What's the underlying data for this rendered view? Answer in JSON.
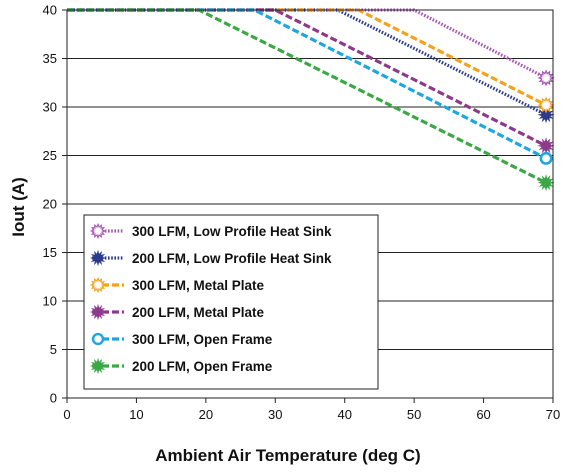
{
  "chart_data": {
    "type": "line",
    "title": "",
    "xlabel": "Ambient Air Temperature (deg C)",
    "ylabel": "Iout (A)",
    "xlim": [
      0,
      70
    ],
    "ylim": [
      0,
      40
    ],
    "xticks": [
      0,
      10,
      20,
      30,
      40,
      50,
      60,
      70
    ],
    "yticks": [
      0,
      5,
      10,
      15,
      20,
      25,
      30,
      35,
      40
    ],
    "grid": "horizontal",
    "legend_position": "bottom-left",
    "series": [
      {
        "name": "300 LFM, Low Profile Heat Sink",
        "color": "#a855b8",
        "style": "dotted",
        "marker": "open-starburst",
        "points": [
          [
            0,
            40
          ],
          [
            50,
            40
          ],
          [
            69,
            33
          ]
        ]
      },
      {
        "name": "200 LFM, Low Profile Heat Sink",
        "color": "#2b3a8c",
        "style": "dotted",
        "marker": "filled-starburst",
        "points": [
          [
            0,
            40
          ],
          [
            39,
            40
          ],
          [
            69,
            29.2
          ]
        ]
      },
      {
        "name": "300 LFM, Metal Plate",
        "color": "#f4a11d",
        "style": "dashed",
        "marker": "open-starburst",
        "points": [
          [
            0,
            40
          ],
          [
            42,
            40
          ],
          [
            69,
            30.2
          ]
        ]
      },
      {
        "name": "200 LFM, Metal Plate",
        "color": "#8e3a8c",
        "style": "dashed",
        "marker": "filled-starburst",
        "points": [
          [
            0,
            40
          ],
          [
            30,
            40
          ],
          [
            69,
            26
          ]
        ]
      },
      {
        "name": "300 LFM, Open Frame",
        "color": "#1ea7df",
        "style": "dashed",
        "marker": "open-circle",
        "points": [
          [
            0,
            40
          ],
          [
            27,
            40
          ],
          [
            69,
            24.7
          ]
        ]
      },
      {
        "name": "200 LFM, Open Frame",
        "color": "#3aa845",
        "style": "dashed",
        "marker": "filled-starburst",
        "points": [
          [
            0,
            40
          ],
          [
            19,
            40
          ],
          [
            69,
            22.2
          ]
        ]
      }
    ]
  }
}
